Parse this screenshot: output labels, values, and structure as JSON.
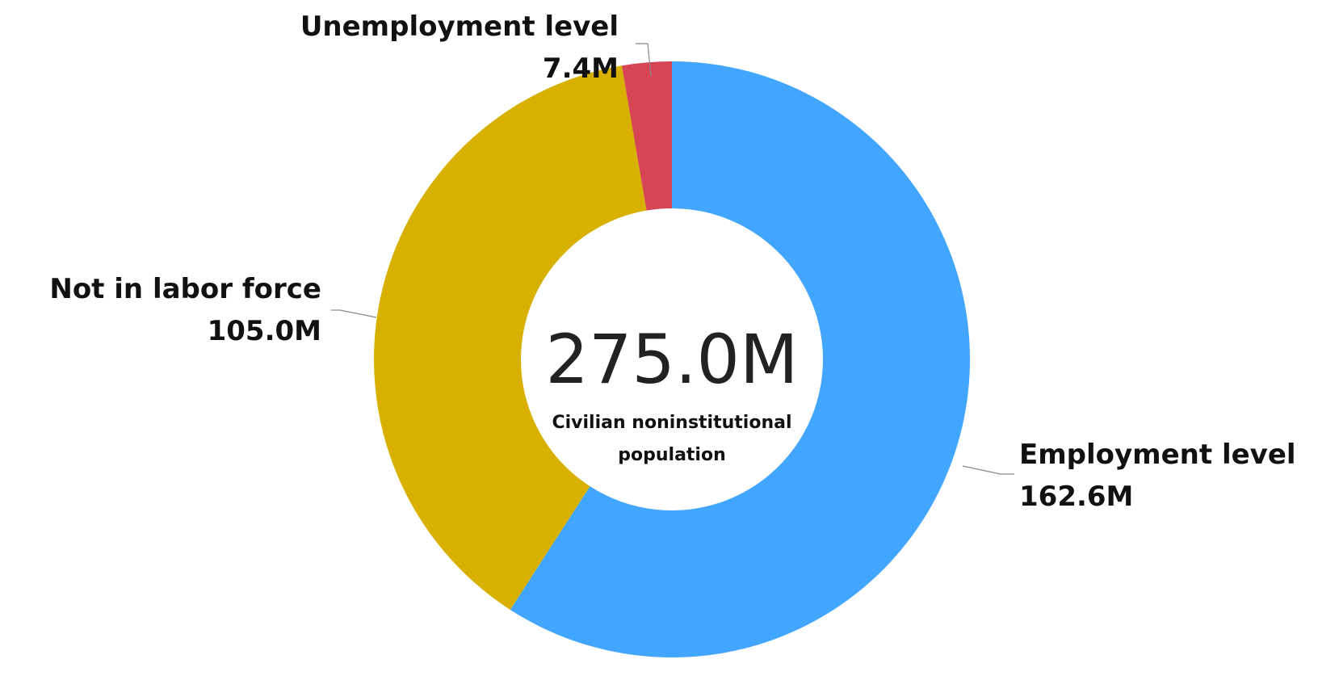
{
  "chart_data": {
    "type": "pie",
    "style": "donut",
    "series": [
      {
        "name": "Employment level",
        "value_label": "162.6M",
        "value": 162.6,
        "color": "#42A5FF"
      },
      {
        "name": "Not in labor force",
        "value_label": "105.0M",
        "value": 105.0,
        "color": "#D8B100"
      },
      {
        "name": "Unemployment level",
        "value_label": "7.4M",
        "value": 7.4,
        "color": "#D64553"
      }
    ],
    "total": {
      "value_label": "275.0M",
      "value": 275.0,
      "label_lines": [
        "Civilian noninstitutional",
        "population"
      ]
    },
    "legend": "none",
    "data_labels": "outside with leader lines"
  }
}
